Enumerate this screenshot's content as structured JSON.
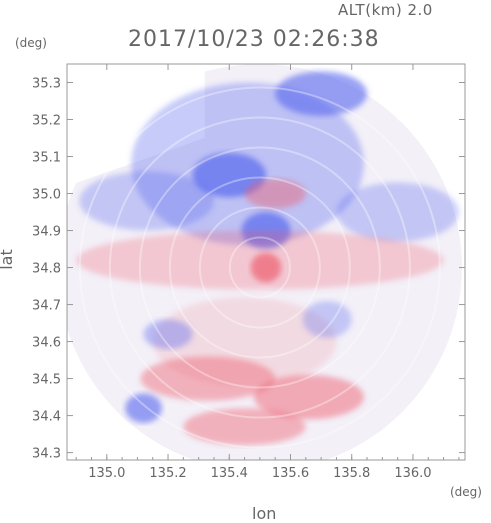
{
  "header": {
    "altitude_label": "ALT(km) 2.0",
    "datetime": "2017/10/23 02:26:38"
  },
  "chart_data": {
    "type": "heatmap",
    "title": "2017/10/23 02:26:38",
    "subtitle": "ALT(km) 2.0",
    "xlabel": "lon",
    "ylabel": "lat",
    "x_unit": "(deg)",
    "y_unit": "(deg)",
    "xlim": [
      134.87,
      136.17
    ],
    "ylim": [
      34.28,
      35.35
    ],
    "x_ticks": [
      "135.0",
      "135.2",
      "135.4",
      "135.6",
      "135.8",
      "136.0"
    ],
    "y_ticks": [
      "34.3",
      "34.4",
      "34.5",
      "34.6",
      "34.7",
      "34.8",
      "34.9",
      "35.0",
      "35.1",
      "35.2",
      "35.3"
    ],
    "grid": false,
    "colors": {
      "positive": "#ee5566",
      "negative": "#5566ee",
      "neutral": "#ffffff",
      "axis": "#999999"
    },
    "regions": [
      {
        "kind": "ellipse",
        "cx": 135.46,
        "cy": 35.08,
        "rx": 0.38,
        "ry": 0.22,
        "value": -0.45
      },
      {
        "kind": "ellipse",
        "cx": 135.4,
        "cy": 35.05,
        "rx": 0.12,
        "ry": 0.06,
        "value": -0.9
      },
      {
        "kind": "ellipse",
        "cx": 135.7,
        "cy": 35.27,
        "rx": 0.15,
        "ry": 0.06,
        "value": -0.8
      },
      {
        "kind": "ellipse",
        "cx": 135.52,
        "cy": 34.9,
        "rx": 0.08,
        "ry": 0.05,
        "value": -0.9
      },
      {
        "kind": "ellipse",
        "cx": 135.13,
        "cy": 34.98,
        "rx": 0.22,
        "ry": 0.08,
        "value": -0.4
      },
      {
        "kind": "ellipse",
        "cx": 135.95,
        "cy": 34.95,
        "rx": 0.2,
        "ry": 0.08,
        "value": -0.4
      },
      {
        "kind": "ellipse",
        "cx": 135.5,
        "cy": 34.82,
        "rx": 0.6,
        "ry": 0.08,
        "value": 0.35
      },
      {
        "kind": "ellipse",
        "cx": 135.52,
        "cy": 34.8,
        "rx": 0.05,
        "ry": 0.04,
        "value": 0.85
      },
      {
        "kind": "ellipse",
        "cx": 135.55,
        "cy": 35.0,
        "rx": 0.1,
        "ry": 0.04,
        "value": 0.55
      },
      {
        "kind": "ellipse",
        "cx": 135.45,
        "cy": 34.6,
        "rx": 0.3,
        "ry": 0.12,
        "value": 0.2
      },
      {
        "kind": "ellipse",
        "cx": 135.33,
        "cy": 34.5,
        "rx": 0.22,
        "ry": 0.06,
        "value": 0.55
      },
      {
        "kind": "ellipse",
        "cx": 135.66,
        "cy": 34.45,
        "rx": 0.18,
        "ry": 0.06,
        "value": 0.6
      },
      {
        "kind": "ellipse",
        "cx": 135.45,
        "cy": 34.37,
        "rx": 0.2,
        "ry": 0.05,
        "value": 0.55
      },
      {
        "kind": "ellipse",
        "cx": 135.12,
        "cy": 34.42,
        "rx": 0.06,
        "ry": 0.04,
        "value": -0.8
      },
      {
        "kind": "ellipse",
        "cx": 135.2,
        "cy": 34.62,
        "rx": 0.08,
        "ry": 0.04,
        "value": -0.5
      },
      {
        "kind": "ellipse",
        "cx": 135.72,
        "cy": 34.66,
        "rx": 0.08,
        "ry": 0.05,
        "value": -0.4
      }
    ]
  }
}
